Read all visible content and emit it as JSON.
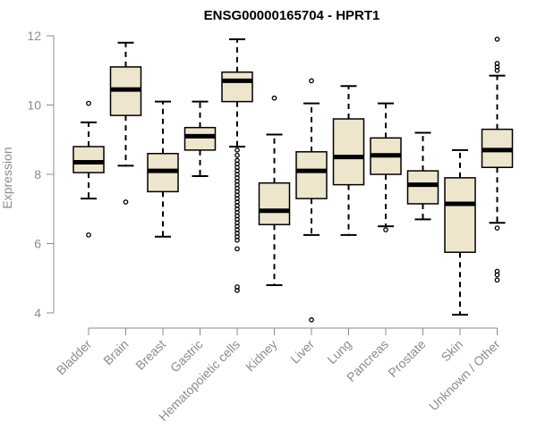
{
  "chart_data": {
    "type": "boxplot",
    "title": "ENSG00000165704 - HPRT1",
    "xlabel": "",
    "ylabel": "Expression",
    "ylim": [
      4,
      12
    ],
    "yticks": [
      4,
      6,
      8,
      10,
      12
    ],
    "colors": {
      "box_fill": "#ede5cc",
      "stroke": "#000000",
      "axis": "#8c8c8c",
      "text": "#8c8c8c"
    },
    "categories": [
      "Bladder",
      "Brain",
      "Breast",
      "Gastric",
      "Hematopoietic cells",
      "Kidney",
      "Liver",
      "Lung",
      "Pancreas",
      "Prostate",
      "Skin",
      "Unknown / Other"
    ],
    "boxes": [
      {
        "name": "Bladder",
        "whisker_low": 7.3,
        "q1": 8.05,
        "median": 8.35,
        "q3": 8.8,
        "whisker_high": 9.5,
        "outliers": [
          6.25,
          10.05
        ]
      },
      {
        "name": "Brain",
        "whisker_low": 8.25,
        "q1": 9.7,
        "median": 10.45,
        "q3": 11.1,
        "whisker_high": 11.8,
        "outliers": [
          7.2
        ]
      },
      {
        "name": "Breast",
        "whisker_low": 6.2,
        "q1": 7.5,
        "median": 8.1,
        "q3": 8.6,
        "whisker_high": 10.1,
        "outliers": []
      },
      {
        "name": "Gastric",
        "whisker_low": 7.95,
        "q1": 8.7,
        "median": 9.1,
        "q3": 9.35,
        "whisker_high": 10.1,
        "outliers": []
      },
      {
        "name": "Hematopoietic cells",
        "whisker_low": 8.8,
        "q1": 10.1,
        "median": 10.7,
        "q3": 10.95,
        "whisker_high": 11.9,
        "outliers": [
          8.7,
          8.55,
          8.4,
          8.3,
          8.2,
          8.1,
          8.0,
          7.9,
          7.8,
          7.7,
          7.6,
          7.5,
          7.4,
          7.3,
          7.2,
          7.1,
          7.0,
          6.9,
          6.8,
          6.7,
          6.6,
          6.5,
          6.4,
          6.3,
          6.2,
          6.1,
          5.85,
          4.75,
          4.65
        ]
      },
      {
        "name": "Kidney",
        "whisker_low": 4.8,
        "q1": 6.55,
        "median": 6.95,
        "q3": 7.75,
        "whisker_high": 9.15,
        "outliers": [
          10.2
        ]
      },
      {
        "name": "Liver",
        "whisker_low": 6.25,
        "q1": 7.3,
        "median": 8.1,
        "q3": 8.65,
        "whisker_high": 10.05,
        "outliers": [
          10.7,
          3.8
        ]
      },
      {
        "name": "Lung",
        "whisker_low": 6.25,
        "q1": 7.7,
        "median": 8.5,
        "q3": 9.6,
        "whisker_high": 10.55,
        "outliers": []
      },
      {
        "name": "Pancreas",
        "whisker_low": 6.5,
        "q1": 8.0,
        "median": 8.55,
        "q3": 9.05,
        "whisker_high": 10.05,
        "outliers": [
          6.4
        ]
      },
      {
        "name": "Prostate",
        "whisker_low": 6.7,
        "q1": 7.15,
        "median": 7.7,
        "q3": 8.1,
        "whisker_high": 9.2,
        "outliers": []
      },
      {
        "name": "Skin",
        "whisker_low": 3.95,
        "q1": 5.75,
        "median": 7.15,
        "q3": 7.9,
        "whisker_high": 8.7,
        "outliers": []
      },
      {
        "name": "Unknown / Other",
        "whisker_low": 6.6,
        "q1": 8.2,
        "median": 8.7,
        "q3": 9.3,
        "whisker_high": 10.85,
        "outliers": [
          11.9,
          11.2,
          11.1,
          11.0,
          6.45,
          5.2,
          5.1,
          4.95
        ]
      }
    ]
  }
}
